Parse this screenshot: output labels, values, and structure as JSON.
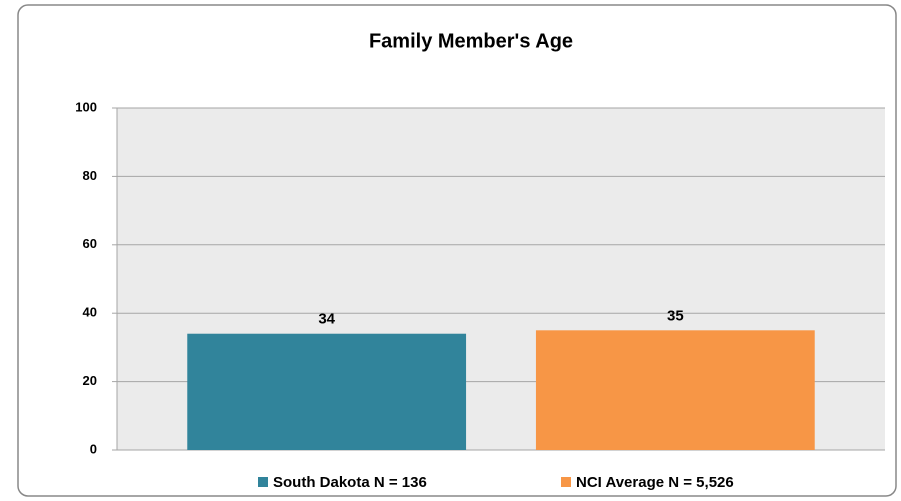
{
  "chart_data": {
    "type": "bar",
    "title": "Family Member's Age",
    "series": [
      {
        "name": "South Dakota N = 136",
        "color": "#31849b",
        "values": [
          34
        ]
      },
      {
        "name": "NCI Average N = 5,526",
        "color": "#f79646",
        "values": [
          35
        ]
      }
    ],
    "ylim": [
      0,
      100
    ],
    "yticks": [
      0,
      20,
      40,
      60,
      80,
      100
    ],
    "grid": true,
    "legend": "bottom"
  }
}
